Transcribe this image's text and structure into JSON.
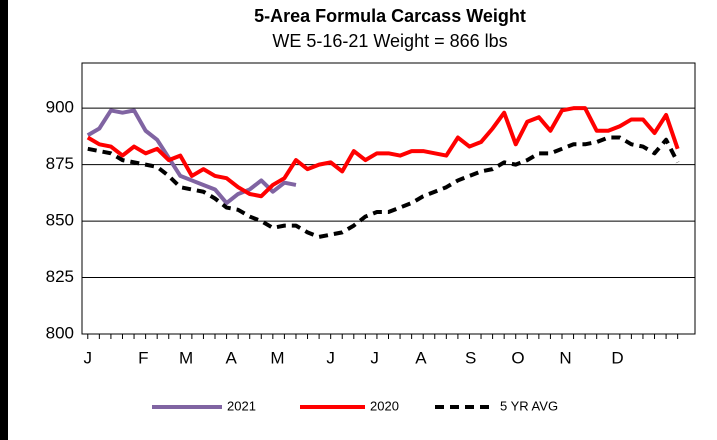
{
  "chart_data": {
    "type": "line",
    "title": "5-Area Formula Carcass Weight",
    "subtitle": "WE 5-16-21 Weight = 866 lbs",
    "x": [
      1,
      2,
      3,
      4,
      5,
      6,
      7,
      8,
      9,
      10,
      11,
      12,
      13,
      14,
      15,
      16,
      17,
      18,
      19,
      20,
      21,
      22,
      23,
      24,
      25,
      26,
      27,
      28,
      29,
      30,
      31,
      32,
      33,
      34,
      35,
      36,
      37,
      38,
      39,
      40,
      41,
      42,
      43,
      44,
      45,
      46,
      47,
      48,
      49,
      50,
      51,
      52
    ],
    "xlim": [
      0.5,
      53.5
    ],
    "xticks": [
      {
        "value": 1,
        "label": "J"
      },
      {
        "value": 5.8,
        "label": "F"
      },
      {
        "value": 9.5,
        "label": "M"
      },
      {
        "value": 13.4,
        "label": "A"
      },
      {
        "value": 17.4,
        "label": "M"
      },
      {
        "value": 22,
        "label": "J"
      },
      {
        "value": 25.8,
        "label": "J"
      },
      {
        "value": 29.8,
        "label": "A"
      },
      {
        "value": 34.1,
        "label": "S"
      },
      {
        "value": 38.2,
        "label": "O"
      },
      {
        "value": 42.3,
        "label": "N"
      },
      {
        "value": 46.8,
        "label": "D"
      }
    ],
    "ylim": [
      800,
      920
    ],
    "yticks": [
      800,
      825,
      850,
      875,
      900
    ],
    "grid": true,
    "legend": "bottom",
    "series": [
      {
        "name": "2021",
        "color": "#8064a2",
        "dashed": false,
        "values": [
          888,
          891,
          899,
          898,
          899,
          890,
          886,
          878,
          870,
          868,
          866,
          864,
          858,
          862,
          864,
          868,
          863,
          867,
          866,
          null,
          null,
          null,
          null,
          null,
          null,
          null,
          null,
          null,
          null,
          null,
          null,
          null,
          null,
          null,
          null,
          null,
          null,
          null,
          null,
          null,
          null,
          null,
          null,
          null,
          null,
          null,
          null,
          null,
          null,
          null,
          null,
          null
        ]
      },
      {
        "name": "2020",
        "color": "#ff0000",
        "dashed": false,
        "values": [
          887,
          884,
          883,
          879,
          883,
          880,
          882,
          877,
          879,
          870,
          873,
          870,
          869,
          865,
          862,
          861,
          866,
          869,
          877,
          873,
          875,
          876,
          872,
          881,
          877,
          880,
          880,
          879,
          881,
          881,
          880,
          879,
          887,
          883,
          885,
          891,
          898,
          884,
          894,
          896,
          890,
          899,
          900,
          900,
          890,
          890,
          892,
          895,
          895,
          889,
          897,
          882
        ]
      },
      {
        "name": "5 YR AVG",
        "color": "#000000",
        "dashed": true,
        "values": [
          882,
          881,
          880,
          877,
          876,
          875,
          874,
          870,
          865,
          864,
          863,
          860,
          856,
          855,
          852,
          850,
          847,
          848,
          848,
          845,
          843,
          844,
          845,
          848,
          852,
          854,
          854,
          856,
          858,
          861,
          863,
          865,
          868,
          870,
          872,
          873,
          876,
          875,
          877,
          880,
          880,
          882,
          884,
          884,
          885,
          887,
          887,
          884,
          883,
          880,
          886,
          876
        ]
      }
    ]
  }
}
